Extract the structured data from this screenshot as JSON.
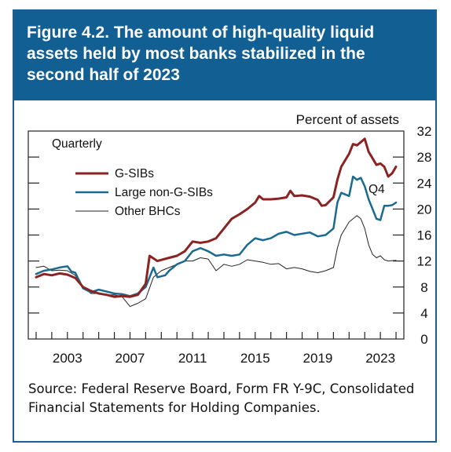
{
  "header": {
    "title": "Figure 4.2. The amount of high-quality liquid assets held by most banks stabilized in the second half of 2023"
  },
  "source": {
    "text": "Source: Federal Reserve Board, Form FR Y-9C, Consolidated Financial Statements for Holding Companies."
  },
  "chart_data": {
    "type": "line",
    "ylabel": "Percent of assets",
    "frequency_label": "Quarterly",
    "end_label": "Q4",
    "xlim": [
      2000.5,
      2024.5
    ],
    "ylim": [
      0,
      32
    ],
    "x_ticks": [
      2003,
      2007,
      2011,
      2015,
      2019,
      2023
    ],
    "y_ticks": [
      0,
      4,
      8,
      12,
      16,
      20,
      24,
      28,
      32
    ],
    "legend_position": "top-left",
    "grid": false,
    "series": [
      {
        "name": "G-SIBs",
        "color": "#8b2323",
        "width": 3,
        "points": [
          [
            2001.0,
            9.5
          ],
          [
            2001.5,
            10.0
          ],
          [
            2002.0,
            9.8
          ],
          [
            2002.5,
            10.1
          ],
          [
            2003.0,
            9.9
          ],
          [
            2003.5,
            9.4
          ],
          [
            2004.0,
            8.0
          ],
          [
            2004.5,
            7.4
          ],
          [
            2005.0,
            7.0
          ],
          [
            2005.5,
            6.8
          ],
          [
            2006.0,
            6.5
          ],
          [
            2006.5,
            6.6
          ],
          [
            2007.0,
            6.5
          ],
          [
            2007.5,
            6.8
          ],
          [
            2008.0,
            8.5
          ],
          [
            2008.25,
            12.8
          ],
          [
            2008.75,
            12.0
          ],
          [
            2009.5,
            12.5
          ],
          [
            2010.0,
            12.8
          ],
          [
            2010.5,
            13.5
          ],
          [
            2011.0,
            15.0
          ],
          [
            2011.5,
            14.8
          ],
          [
            2012.0,
            15.0
          ],
          [
            2012.5,
            15.5
          ],
          [
            2013.0,
            17.0
          ],
          [
            2013.5,
            18.5
          ],
          [
            2014.0,
            19.2
          ],
          [
            2014.5,
            20.0
          ],
          [
            2015.0,
            21.0
          ],
          [
            2015.25,
            22.0
          ],
          [
            2015.5,
            21.5
          ],
          [
            2016.0,
            21.5
          ],
          [
            2016.5,
            21.6
          ],
          [
            2017.0,
            21.8
          ],
          [
            2017.25,
            22.8
          ],
          [
            2017.5,
            22.0
          ],
          [
            2018.0,
            22.1
          ],
          [
            2018.5,
            21.9
          ],
          [
            2019.0,
            21.4
          ],
          [
            2019.25,
            20.5
          ],
          [
            2019.5,
            20.6
          ],
          [
            2020.0,
            21.8
          ],
          [
            2020.25,
            24.5
          ],
          [
            2020.5,
            26.5
          ],
          [
            2021.0,
            28.5
          ],
          [
            2021.25,
            30.0
          ],
          [
            2021.5,
            29.8
          ],
          [
            2021.75,
            30.3
          ],
          [
            2022.0,
            30.8
          ],
          [
            2022.25,
            28.8
          ],
          [
            2022.5,
            27.8
          ],
          [
            2022.75,
            26.8
          ],
          [
            2023.0,
            27.0
          ],
          [
            2023.25,
            26.5
          ],
          [
            2023.5,
            25.0
          ],
          [
            2023.75,
            25.5
          ],
          [
            2024.0,
            26.5
          ]
        ]
      },
      {
        "name": "Large non-G-SIBs",
        "color": "#1a6a8f",
        "width": 2.5,
        "points": [
          [
            2001.0,
            10.0
          ],
          [
            2001.5,
            10.5
          ],
          [
            2002.0,
            10.7
          ],
          [
            2002.5,
            11.0
          ],
          [
            2003.0,
            11.2
          ],
          [
            2003.25,
            10.4
          ],
          [
            2003.5,
            10.2
          ],
          [
            2004.0,
            7.8
          ],
          [
            2004.5,
            7.2
          ],
          [
            2005.0,
            7.6
          ],
          [
            2005.5,
            7.3
          ],
          [
            2006.0,
            7.0
          ],
          [
            2006.5,
            6.9
          ],
          [
            2007.0,
            6.6
          ],
          [
            2007.5,
            7.0
          ],
          [
            2008.0,
            8.0
          ],
          [
            2008.5,
            11.0
          ],
          [
            2008.75,
            9.5
          ],
          [
            2009.25,
            9.8
          ],
          [
            2009.5,
            10.5
          ],
          [
            2010.0,
            11.5
          ],
          [
            2010.5,
            12.0
          ],
          [
            2011.0,
            13.5
          ],
          [
            2011.5,
            14.0
          ],
          [
            2012.0,
            13.5
          ],
          [
            2012.5,
            12.8
          ],
          [
            2013.0,
            13.0
          ],
          [
            2013.5,
            12.8
          ],
          [
            2014.0,
            13.0
          ],
          [
            2014.5,
            14.5
          ],
          [
            2015.0,
            15.5
          ],
          [
            2015.5,
            15.2
          ],
          [
            2016.0,
            15.5
          ],
          [
            2016.5,
            16.2
          ],
          [
            2017.0,
            16.5
          ],
          [
            2017.5,
            16.0
          ],
          [
            2018.0,
            16.2
          ],
          [
            2018.5,
            16.4
          ],
          [
            2019.0,
            15.8
          ],
          [
            2019.5,
            16.0
          ],
          [
            2020.0,
            17.0
          ],
          [
            2020.25,
            21.0
          ],
          [
            2020.5,
            22.5
          ],
          [
            2021.0,
            22.0
          ],
          [
            2021.25,
            25.0
          ],
          [
            2021.5,
            24.5
          ],
          [
            2021.75,
            24.8
          ],
          [
            2022.0,
            23.5
          ],
          [
            2022.25,
            21.5
          ],
          [
            2022.5,
            20.0
          ],
          [
            2022.75,
            18.5
          ],
          [
            2023.0,
            18.3
          ],
          [
            2023.25,
            20.5
          ],
          [
            2023.5,
            20.5
          ],
          [
            2023.75,
            20.6
          ],
          [
            2024.0,
            21.0
          ]
        ]
      },
      {
        "name": "Other BHCs",
        "color": "#222222",
        "width": 1,
        "points": [
          [
            2001.0,
            11.0
          ],
          [
            2001.5,
            11.2
          ],
          [
            2002.0,
            10.5
          ],
          [
            2002.5,
            10.6
          ],
          [
            2003.0,
            10.5
          ],
          [
            2003.5,
            9.8
          ],
          [
            2004.0,
            8.0
          ],
          [
            2004.5,
            7.0
          ],
          [
            2005.0,
            7.0
          ],
          [
            2005.5,
            6.8
          ],
          [
            2006.0,
            6.8
          ],
          [
            2006.5,
            6.5
          ],
          [
            2007.0,
            5.0
          ],
          [
            2007.5,
            5.5
          ],
          [
            2008.0,
            6.2
          ],
          [
            2008.5,
            9.5
          ],
          [
            2009.0,
            10.5
          ],
          [
            2009.5,
            11.0
          ],
          [
            2010.0,
            11.5
          ],
          [
            2010.5,
            12.0
          ],
          [
            2011.0,
            12.0
          ],
          [
            2011.5,
            12.5
          ],
          [
            2012.0,
            12.3
          ],
          [
            2012.5,
            10.5
          ],
          [
            2013.0,
            11.5
          ],
          [
            2013.5,
            11.2
          ],
          [
            2014.0,
            11.5
          ],
          [
            2014.5,
            12.2
          ],
          [
            2015.0,
            12.0
          ],
          [
            2015.5,
            11.8
          ],
          [
            2016.0,
            11.5
          ],
          [
            2016.5,
            11.6
          ],
          [
            2017.0,
            10.8
          ],
          [
            2017.5,
            11.0
          ],
          [
            2018.0,
            10.8
          ],
          [
            2018.5,
            10.4
          ],
          [
            2019.0,
            10.2
          ],
          [
            2019.5,
            10.5
          ],
          [
            2020.0,
            11.0
          ],
          [
            2020.25,
            14.0
          ],
          [
            2020.5,
            16.0
          ],
          [
            2021.0,
            18.0
          ],
          [
            2021.5,
            19.0
          ],
          [
            2021.75,
            18.5
          ],
          [
            2022.0,
            17.0
          ],
          [
            2022.25,
            14.5
          ],
          [
            2022.5,
            13.0
          ],
          [
            2022.75,
            12.5
          ],
          [
            2023.0,
            12.8
          ],
          [
            2023.25,
            12.2
          ],
          [
            2023.5,
            12.0
          ],
          [
            2024.0,
            12.1
          ]
        ]
      }
    ]
  }
}
